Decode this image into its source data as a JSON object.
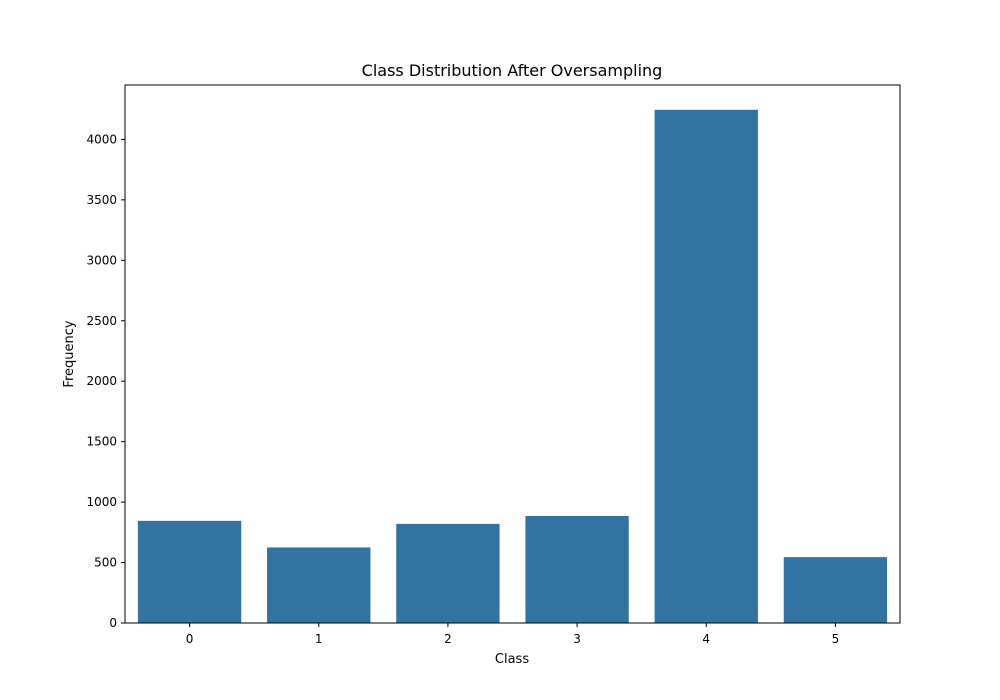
{
  "chart_data": {
    "type": "bar",
    "title": "Class Distribution After Oversampling",
    "xlabel": "Class",
    "ylabel": "Frequency",
    "categories": [
      "0",
      "1",
      "2",
      "3",
      "4",
      "5"
    ],
    "values": [
      845,
      625,
      820,
      885,
      4245,
      545
    ],
    "ylim": [
      0,
      4450
    ],
    "yticks": [
      0,
      500,
      1000,
      1500,
      2000,
      2500,
      3000,
      3500,
      4000
    ],
    "ytick_labels": [
      "0",
      "500",
      "1000",
      "1500",
      "2000",
      "2500",
      "3000",
      "3500",
      "4000"
    ],
    "grid": false,
    "bar_color": "#3274a1"
  }
}
